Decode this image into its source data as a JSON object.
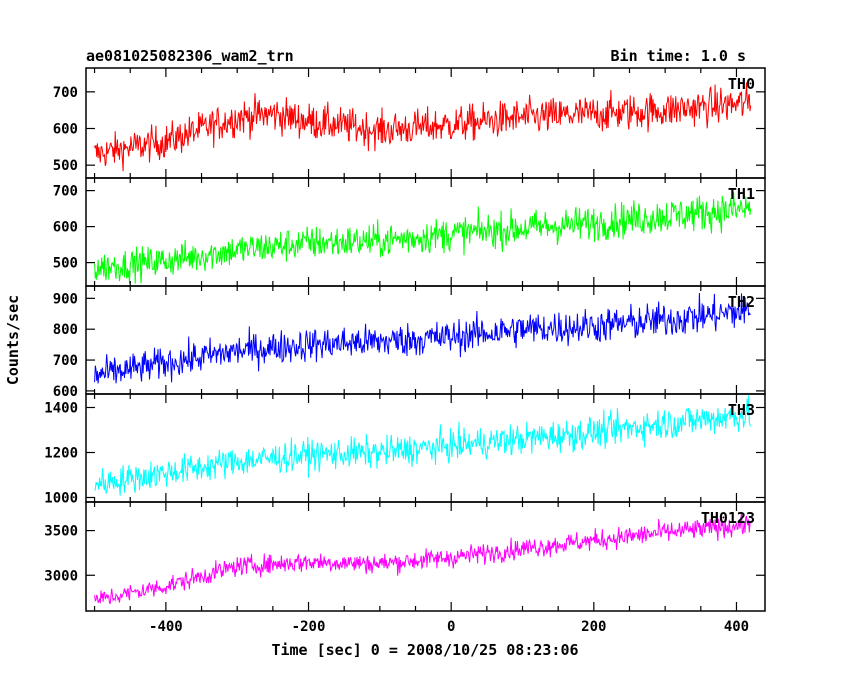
{
  "chart_data": {
    "type": "line",
    "title": "ae081025082306_wam2_trn",
    "subtitle": "Bin time: 1.0 s",
    "xlabel": "Time [sec] 0 = 2008/10/25 08:23:06",
    "ylabel": "Counts/sec",
    "xlim": [
      -512,
      440
    ],
    "xticks": [
      -400,
      -200,
      0,
      200,
      400
    ],
    "grid": false,
    "panels": [
      {
        "name": "TH0",
        "color": "#ff0000",
        "ylim": [
          465,
          765
        ],
        "yticks": [
          500,
          600,
          700
        ],
        "x": [
          -500,
          -400,
          -300,
          -250,
          -200,
          -100,
          0,
          100,
          200,
          300,
          420
        ],
        "y": [
          530,
          565,
          630,
          640,
          620,
          595,
          610,
          630,
          640,
          650,
          670
        ]
      },
      {
        "name": "TH1",
        "color": "#00ff00",
        "ylim": [
          435,
          735
        ],
        "yticks": [
          500,
          600,
          700
        ],
        "x": [
          -500,
          -400,
          -300,
          -200,
          -100,
          0,
          100,
          200,
          300,
          420
        ],
        "y": [
          485,
          505,
          535,
          555,
          560,
          580,
          595,
          610,
          630,
          650
        ]
      },
      {
        "name": "TH2",
        "color": "#0000ff",
        "ylim": [
          590,
          940
        ],
        "yticks": [
          600,
          700,
          800,
          900
        ],
        "x": [
          -500,
          -400,
          -300,
          -200,
          -100,
          0,
          100,
          200,
          300,
          420
        ],
        "y": [
          650,
          690,
          730,
          750,
          760,
          775,
          800,
          810,
          830,
          860
        ]
      },
      {
        "name": "TH3",
        "color": "#00ffff",
        "ylim": [
          980,
          1460
        ],
        "yticks": [
          1000,
          1200,
          1400
        ],
        "x": [
          -500,
          -400,
          -300,
          -200,
          -100,
          0,
          100,
          200,
          300,
          420
        ],
        "y": [
          1060,
          1110,
          1160,
          1190,
          1200,
          1230,
          1260,
          1290,
          1330,
          1370
        ]
      },
      {
        "name": "TH0123",
        "color": "#ff00ff",
        "ylim": [
          2600,
          3820
        ],
        "yticks": [
          3000,
          3500
        ],
        "x": [
          -500,
          -400,
          -300,
          -200,
          -100,
          0,
          100,
          200,
          300,
          420
        ],
        "y": [
          2720,
          2880,
          3100,
          3150,
          3130,
          3200,
          3300,
          3390,
          3480,
          3570
        ]
      }
    ]
  }
}
